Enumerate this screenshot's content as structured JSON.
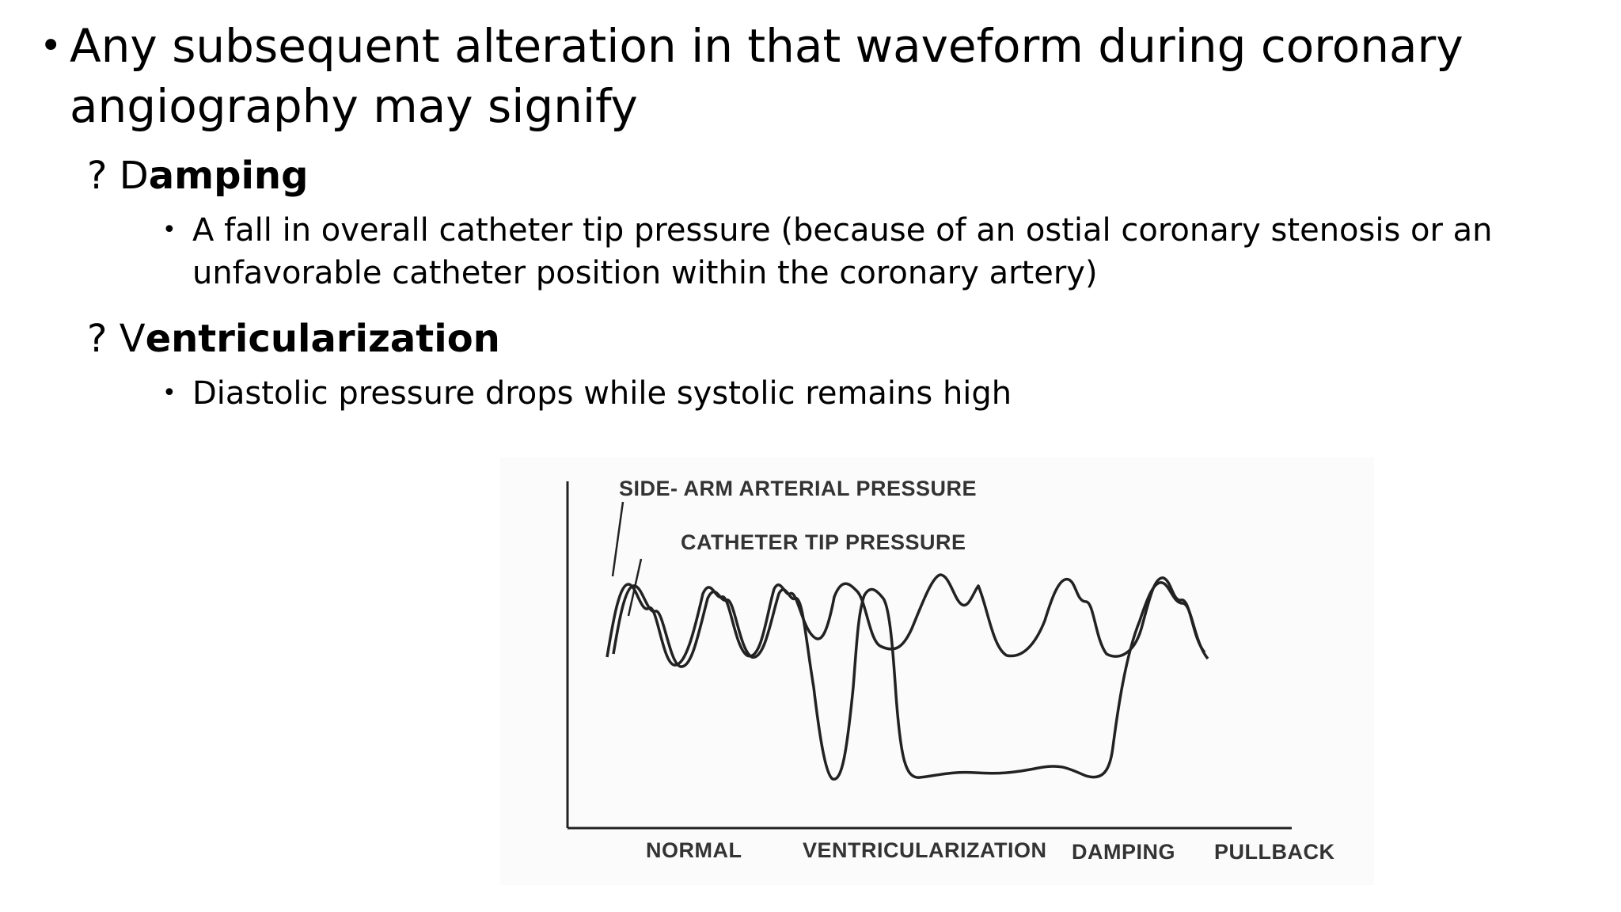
{
  "slide": {
    "main_bullet": "Any subsequent alteration in that waveform during coronary angiography may signify",
    "items": [
      {
        "prefix": "? ",
        "lead": "D",
        "rest": "amping",
        "detail": "A fall in overall catheter tip pressure (because of an ostial coronary stenosis or an unfavorable catheter position within the coronary artery)"
      },
      {
        "prefix": "? ",
        "lead": "V",
        "rest": "entricularization",
        "detail": "Diastolic pressure drops while systolic remains high"
      }
    ]
  },
  "figure": {
    "label_side_arm": "SIDE- ARM ARTERIAL PRESSURE",
    "label_catheter_tip": "CATHETER TIP PRESSURE",
    "segments": [
      "NORMAL",
      "VENTRICULARIZATION",
      "DAMPING",
      "PULLBACK"
    ]
  }
}
